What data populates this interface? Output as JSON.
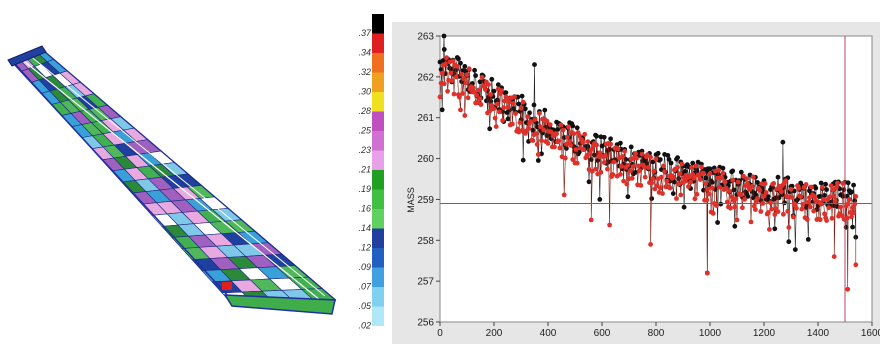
{
  "colors": {
    "series_black": "#111111",
    "series_red": "#e0302a",
    "crosshair": "#c0405a",
    "plot_bg": "#ffffff",
    "panel_bg": "#e6e6e6"
  },
  "color_scale": {
    "ticks": [
      ".37",
      ".34",
      ".32",
      ".30",
      ".28",
      ".25",
      ".23",
      ".21",
      ".19",
      ".16",
      ".14",
      ".12",
      ".09",
      ".07",
      ".05",
      ".02"
    ],
    "colors": [
      "#000000",
      "#e02020",
      "#f07020",
      "#f0a020",
      "#f0e020",
      "#c050c0",
      "#d070d0",
      "#e8a0e8",
      "#20a020",
      "#40c040",
      "#60d060",
      "#2040a0",
      "#2060c0",
      "#40a0e0",
      "#80d0f0",
      "#b0e8f8"
    ]
  },
  "chart_data": {
    "type": "scatter",
    "title": "",
    "xlabel": "",
    "ylabel": "MASS",
    "xlim": [
      0,
      1600
    ],
    "ylim": [
      256,
      263
    ],
    "x_ticks": [
      "0",
      "200",
      "400",
      "600",
      "800",
      "1000",
      "1200",
      "1400",
      "1600"
    ],
    "y_ticks": [
      "256",
      "257",
      "258",
      "259",
      "260",
      "261",
      "262",
      "263"
    ],
    "crosshair": {
      "x": 1500,
      "y": 258.9
    },
    "series": [
      {
        "color": "#111111",
        "trend": [
          [
            0,
            262.4
          ],
          [
            200,
            261.6
          ],
          [
            400,
            260.8
          ],
          [
            600,
            260.2
          ],
          [
            800,
            259.8
          ],
          [
            1000,
            259.5
          ],
          [
            1200,
            259.3
          ],
          [
            1400,
            259.1
          ],
          [
            1540,
            259.2
          ]
        ],
        "spread": 0.35,
        "outliers": [
          [
            15,
            263.0
          ],
          [
            350,
            262.3
          ],
          [
            1270,
            260.4
          ],
          [
            990,
            257.2
          ]
        ]
      },
      {
        "color": "#e0302a",
        "trend": [
          [
            0,
            262.2
          ],
          [
            200,
            261.4
          ],
          [
            400,
            260.6
          ],
          [
            600,
            260.0
          ],
          [
            800,
            259.6
          ],
          [
            1000,
            259.3
          ],
          [
            1200,
            259.1
          ],
          [
            1400,
            258.9
          ],
          [
            1540,
            259.0
          ]
        ],
        "spread": 0.45,
        "outliers": [
          [
            990,
            257.2
          ],
          [
            1510,
            256.8
          ],
          [
            1460,
            257.6
          ],
          [
            1540,
            257.4
          ],
          [
            780,
            257.9
          ],
          [
            560,
            258.5
          ]
        ]
      }
    ]
  }
}
